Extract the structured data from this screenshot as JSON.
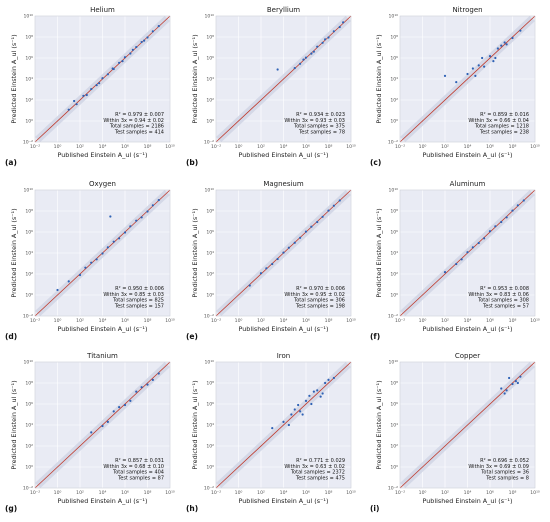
{
  "figure": {
    "xlabel": "Published Einstein A_ul (s⁻¹)",
    "ylabel": "Predicted Einstein A_ul (s⁻¹)",
    "tick_labels": [
      "10⁻²",
      "10⁰",
      "10²",
      "10⁴",
      "10⁶",
      "10⁸",
      "10¹⁰"
    ],
    "colors": {
      "panel_bg": "#e9ebf4",
      "grid": "#ffffff",
      "point": "#2f62b5",
      "diagonal": "#c0392b",
      "band": "#d2d6e5"
    }
  },
  "chart_data": [
    {
      "type": "scatter",
      "panel_label": "(a)",
      "title": "Helium",
      "log_x": true,
      "log_y": true,
      "xlim": [
        0.01,
        10000000000.0
      ],
      "ylim": [
        0.01,
        10000000000.0
      ],
      "grid": true,
      "stats": {
        "r2": "R² = 0.979 ± 0.007",
        "within": "Within 3x = 0.94 ± 0.02",
        "total": "Total samples = 2186",
        "test": "Test samples = 414"
      },
      "x": [
        10,
        50,
        200,
        1000,
        3000,
        10000,
        30000,
        100000,
        300000,
        1000000,
        3000000,
        10000000,
        30000000,
        100000000,
        300000000,
        1000000000,
        30,
        400,
        5000,
        80000,
        600000,
        5000000,
        50000000
      ],
      "y": [
        12,
        40,
        250,
        1100,
        2600,
        12000,
        28000,
        90000,
        350000,
        1200000,
        2700000,
        11000000,
        33000000,
        90000000,
        350000000,
        1100000000,
        80,
        300,
        4000,
        100000,
        500000,
        6000000,
        45000000
      ]
    },
    {
      "type": "scatter",
      "panel_label": "(b)",
      "title": "Beryllium",
      "log_x": true,
      "log_y": true,
      "xlim": [
        0.01,
        10000000000.0
      ],
      "ylim": [
        0.01,
        10000000000.0
      ],
      "grid": true,
      "stats": {
        "r2": "R² = 0.934 ± 0.023",
        "within": "Within 3x = 0.93 ± 0.03",
        "total": "Total samples = 375",
        "test": "Test samples = 78"
      },
      "x": [
        100000,
        300000,
        1000000,
        3000000,
        10000000,
        30000000,
        100000000,
        300000000,
        1000000000,
        2000000000,
        600000,
        5000000,
        50000000,
        3000
      ],
      "y": [
        110000,
        280000,
        1100000,
        2600000,
        12000000,
        28000000,
        90000000,
        350000000,
        900000000,
        2500000000,
        700000,
        4000000,
        60000000,
        80000
      ]
    },
    {
      "type": "scatter",
      "panel_label": "(c)",
      "title": "Nitrogen",
      "log_x": true,
      "log_y": true,
      "xlim": [
        0.01,
        10000000000.0
      ],
      "ylim": [
        0.01,
        10000000000.0
      ],
      "grid": true,
      "stats": {
        "r2": "R² = 0.859 ± 0.016",
        "within": "Within 3x = 0.66 ± 0.04",
        "total": "Total samples = 1218",
        "test": "Test samples = 238"
      },
      "x": [
        100,
        1000,
        10000,
        50000,
        100000,
        300000,
        1000000,
        3000000,
        10000000,
        30000000,
        100000000,
        500000000,
        200000,
        2000000,
        20000000,
        30000,
        5000000
      ],
      "y": [
        20000,
        5000,
        30000,
        20000,
        200000,
        150000,
        1500000,
        1000000,
        15000000,
        20000000,
        80000000,
        400000000,
        1000000,
        500000,
        30000000,
        100000,
        8000000
      ]
    },
    {
      "type": "scatter",
      "panel_label": "(d)",
      "title": "Oxygen",
      "log_x": true,
      "log_y": true,
      "xlim": [
        0.01,
        10000000000.0
      ],
      "ylim": [
        0.01,
        10000000000.0
      ],
      "grid": true,
      "stats": {
        "r2": "R² = 0.950 ± 0.006",
        "within": "Within 3x = 0.85 ± 0.03",
        "total": "Total samples = 825",
        "test": "Test samples = 157"
      },
      "x": [
        1,
        10,
        100,
        1000,
        10000,
        100000,
        1000000,
        10000000,
        100000000,
        1000000000,
        300,
        3000,
        30000,
        300000,
        3000000,
        30000000,
        300000000,
        50000
      ],
      "y": [
        3,
        20,
        80,
        1200,
        9000,
        120000,
        900000,
        12000000,
        90000000,
        1100000000,
        400,
        2500,
        35000,
        250000,
        3500000,
        25000000,
        350000000,
        30000000
      ]
    },
    {
      "type": "scatter",
      "panel_label": "(e)",
      "title": "Magnesium",
      "log_x": true,
      "log_y": true,
      "xlim": [
        0.01,
        10000000000.0
      ],
      "ylim": [
        0.01,
        10000000000.0
      ],
      "grid": true,
      "stats": {
        "r2": "R² = 0.970 ± 0.006",
        "within": "Within 3x = 0.95 ± 0.02",
        "total": "Total samples = 306",
        "test": "Test samples = 198"
      },
      "x": [
        10,
        100,
        1000,
        10000,
        100000,
        1000000,
        10000000,
        100000000,
        1000000000,
        300,
        3000,
        30000,
        300000,
        3000000,
        30000000,
        300000000
      ],
      "y": [
        8,
        120,
        900,
        11000,
        95000,
        1100000,
        9000000,
        110000000,
        1000000000,
        350,
        2700,
        32000,
        280000,
        3200000,
        28000000,
        320000000
      ]
    },
    {
      "type": "scatter",
      "panel_label": "(f)",
      "title": "Aluminum",
      "log_x": true,
      "log_y": true,
      "xlim": [
        0.01,
        10000000000.0
      ],
      "ylim": [
        0.01,
        10000000000.0
      ],
      "grid": true,
      "stats": {
        "r2": "R² = 0.953 ± 0.008",
        "within": "Within 3x = 0.83 ± 0.06",
        "total": "Total samples = 308",
        "test": "Test samples = 57"
      },
      "x": [
        100,
        1000,
        10000,
        100000,
        1000000,
        10000000,
        100000000,
        1000000000,
        3000,
        30000,
        300000,
        3000000,
        30000000,
        300000000
      ],
      "y": [
        150,
        900,
        12000,
        90000,
        1200000,
        9000000,
        110000000,
        1000000000,
        2500,
        35000,
        250000,
        3500000,
        25000000,
        350000000
      ]
    },
    {
      "type": "scatter",
      "panel_label": "(g)",
      "title": "Titanium",
      "log_x": true,
      "log_y": true,
      "xlim": [
        0.01,
        10000000000.0
      ],
      "ylim": [
        0.01,
        10000000000.0
      ],
      "grid": true,
      "stats": {
        "r2": "R² = 0.857 ± 0.031",
        "within": "Within 3x = 0.68 ± 0.10",
        "total": "Total samples = 404",
        "test": "Test samples = 87"
      },
      "x": [
        1000,
        10000,
        100000,
        1000000,
        10000000,
        100000000,
        300000,
        3000000,
        30000000,
        300000000,
        30000,
        1000000000
      ],
      "y": [
        2000,
        8000,
        200000,
        800000,
        15000000,
        70000000,
        500000,
        2000000,
        40000000,
        200000000,
        20000,
        800000000
      ]
    },
    {
      "type": "scatter",
      "panel_label": "(h)",
      "title": "Iron",
      "log_x": true,
      "log_y": true,
      "xlim": [
        0.01,
        10000000000.0
      ],
      "ylim": [
        0.01,
        10000000000.0
      ],
      "grid": true,
      "stats": {
        "r2": "R² = 0.771 ± 0.029",
        "within": "Within 3x = 0.63 ± 0.02",
        "total": "Total samples = 2372",
        "test": "Test samples = 475"
      },
      "x": [
        1000,
        10000,
        30000,
        100000,
        300000,
        1000000,
        3000000,
        10000000,
        30000000,
        100000000,
        300000000,
        200000,
        2000000,
        20000000,
        50000,
        5000000,
        500000,
        50000000
      ],
      "y": [
        5000,
        20000,
        10000,
        300000,
        200000,
        2000000,
        1000000,
        20000000,
        10000000,
        200000000,
        300000000,
        800000,
        6000000,
        5000000,
        100000,
        15000000,
        100000,
        100000000
      ]
    },
    {
      "type": "scatter",
      "panel_label": "(i)",
      "title": "Copper",
      "log_x": true,
      "log_y": true,
      "xlim": [
        0.01,
        10000000000.0
      ],
      "ylim": [
        0.01,
        10000000000.0
      ],
      "grid": true,
      "stats": {
        "r2": "R² = 0.696 ± 0.052",
        "within": "Within 3x = 0.69 ± 0.09",
        "total": "Total samples = 36",
        "test": "Test samples = 8"
      },
      "x": [
        10000000,
        30000000,
        100000000,
        300000000,
        50000000,
        200000000,
        20000000,
        500000000
      ],
      "y": [
        30000000,
        20000000,
        80000000,
        100000000,
        300000000,
        150000000,
        10000000,
        400000000
      ]
    }
  ]
}
